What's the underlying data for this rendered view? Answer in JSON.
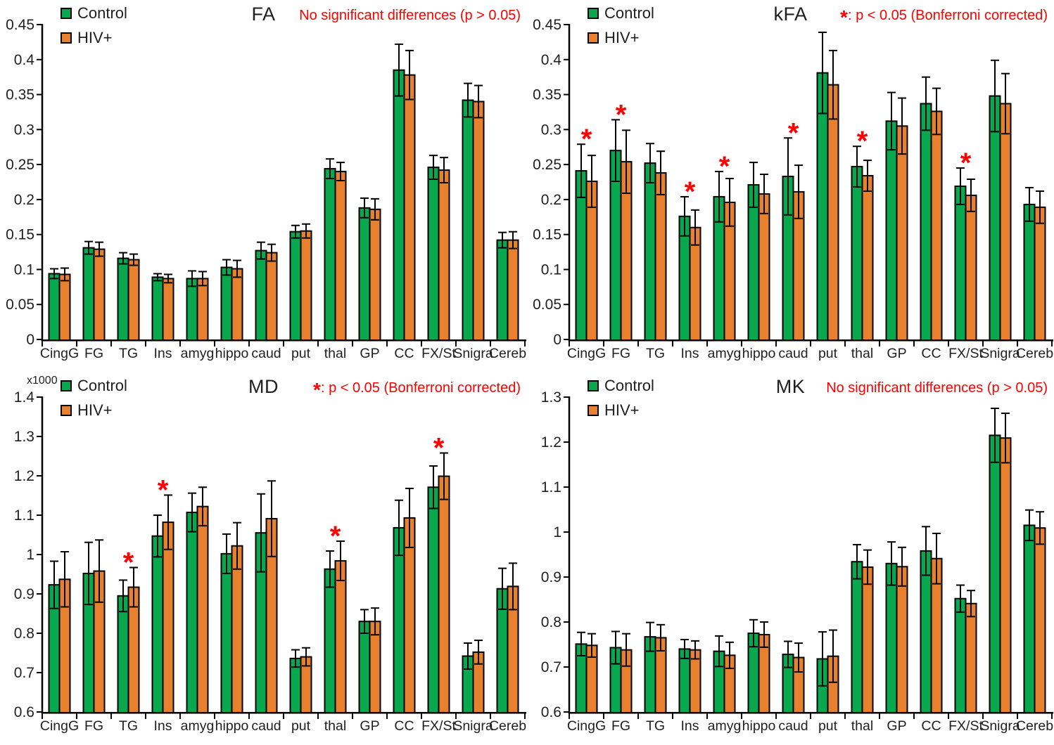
{
  "figure": {
    "background": "#ffffff",
    "bar_border_color": "#000000",
    "axis_color": "#000000",
    "text_color": "#1f1f1f",
    "significance_color": "#ff0000"
  },
  "chart_data": [
    {
      "key": "FA",
      "type": "bar",
      "title": "FA",
      "annotation": {
        "star": "",
        "text": "No significant differences (p > 0.05)",
        "color": "#ff0000"
      },
      "multiplier": "",
      "ylim": [
        0,
        0.45
      ],
      "ytick_values": [
        0,
        0.05,
        0.1,
        0.15,
        0.2,
        0.25,
        0.3,
        0.35,
        0.4,
        0.45
      ],
      "ytick_labels": [
        "0",
        "0.05",
        "0.1",
        "0.15",
        "0.2",
        "0.25",
        "0.3",
        "0.35",
        "0.4",
        "0.45"
      ],
      "grid": false,
      "legend_position": "top-left",
      "categories": [
        "CingG",
        "FG",
        "TG",
        "Ins",
        "amyg",
        "hippo",
        "caud",
        "put",
        "thal",
        "GP",
        "CC",
        "FX/St",
        "Snigra",
        "Cereb"
      ],
      "series": [
        {
          "name": "Control",
          "color": "#0aa84e",
          "values": [
            0.094,
            0.131,
            0.116,
            0.089,
            0.087,
            0.103,
            0.127,
            0.154,
            0.244,
            0.188,
            0.385,
            0.246,
            0.342,
            0.142
          ],
          "errors": [
            0.007,
            0.009,
            0.008,
            0.005,
            0.011,
            0.011,
            0.012,
            0.009,
            0.014,
            0.014,
            0.037,
            0.017,
            0.024,
            0.011
          ]
        },
        {
          "name": "HIV+",
          "color": "#e8812f",
          "values": [
            0.093,
            0.129,
            0.114,
            0.087,
            0.087,
            0.101,
            0.124,
            0.155,
            0.24,
            0.186,
            0.378,
            0.242,
            0.34,
            0.142
          ],
          "errors": [
            0.009,
            0.01,
            0.008,
            0.006,
            0.01,
            0.012,
            0.012,
            0.01,
            0.013,
            0.015,
            0.035,
            0.018,
            0.023,
            0.012
          ]
        }
      ],
      "significant_categories": []
    },
    {
      "key": "kFA",
      "type": "bar",
      "title": "kFA",
      "annotation": {
        "star": "*",
        "text": ": p < 0.05 (Bonferroni corrected)",
        "color": "#ff0000"
      },
      "multiplier": "",
      "ylim": [
        0,
        0.45
      ],
      "ytick_values": [
        0,
        0.05,
        0.1,
        0.15,
        0.2,
        0.25,
        0.3,
        0.35,
        0.4,
        0.45
      ],
      "ytick_labels": [
        "0",
        "0.05",
        "0.1",
        "0.15",
        "0.2",
        "0.25",
        "0.3",
        "0.35",
        "0.4",
        "0.45"
      ],
      "grid": false,
      "legend_position": "top-left",
      "categories": [
        "CingG",
        "FG",
        "TG",
        "Ins",
        "amyg",
        "hippo",
        "caud",
        "put",
        "thal",
        "GP",
        "CC",
        "FX/St",
        "Snigra",
        "Cereb"
      ],
      "series": [
        {
          "name": "Control",
          "color": "#0aa84e",
          "values": [
            0.241,
            0.27,
            0.252,
            0.176,
            0.204,
            0.221,
            0.233,
            0.381,
            0.247,
            0.312,
            0.337,
            0.219,
            0.348,
            0.193
          ],
          "errors": [
            0.038,
            0.044,
            0.028,
            0.028,
            0.036,
            0.032,
            0.055,
            0.058,
            0.029,
            0.041,
            0.038,
            0.026,
            0.051,
            0.024
          ]
        },
        {
          "name": "HIV+",
          "color": "#e8812f",
          "values": [
            0.226,
            0.254,
            0.238,
            0.16,
            0.196,
            0.208,
            0.211,
            0.364,
            0.234,
            0.305,
            0.326,
            0.206,
            0.337,
            0.189
          ],
          "errors": [
            0.037,
            0.045,
            0.031,
            0.025,
            0.034,
            0.028,
            0.038,
            0.049,
            0.022,
            0.04,
            0.033,
            0.023,
            0.043,
            0.023
          ]
        }
      ],
      "significant_categories": [
        "CingG",
        "FG",
        "Ins",
        "amyg",
        "caud",
        "thal",
        "FX/St"
      ]
    },
    {
      "key": "MD",
      "type": "bar",
      "title": "MD",
      "annotation": {
        "star": "*",
        "text": ": p < 0.05 (Bonferroni corrected)",
        "color": "#ff0000"
      },
      "multiplier": "x1000",
      "ylim": [
        0.6,
        1.4
      ],
      "ytick_values": [
        0.6,
        0.7,
        0.8,
        0.9,
        1.0,
        1.1,
        1.2,
        1.3,
        1.4
      ],
      "ytick_labels": [
        "0.6",
        "0.7",
        "0.8",
        "0.9",
        "1",
        "1.1",
        "1.2",
        "1.3",
        "1.4"
      ],
      "grid": false,
      "legend_position": "top-left",
      "categories": [
        "CingG",
        "FG",
        "TG",
        "Ins",
        "amyg",
        "hippo",
        "caud",
        "put",
        "thal",
        "GP",
        "CC",
        "FX/St",
        "Snigra",
        "Cereb"
      ],
      "series": [
        {
          "name": "Control",
          "color": "#0aa84e",
          "values": [
            0.923,
            0.952,
            0.895,
            1.047,
            1.107,
            1.002,
            1.055,
            0.736,
            0.963,
            0.83,
            1.068,
            1.171,
            0.742,
            0.913
          ],
          "errors": [
            0.06,
            0.079,
            0.04,
            0.053,
            0.049,
            0.05,
            0.099,
            0.022,
            0.046,
            0.03,
            0.07,
            0.054,
            0.033,
            0.052
          ]
        },
        {
          "name": "HIV+",
          "color": "#e8812f",
          "values": [
            0.937,
            0.958,
            0.917,
            1.082,
            1.122,
            1.022,
            1.091,
            0.74,
            0.984,
            0.83,
            1.093,
            1.199,
            0.752,
            0.919
          ],
          "errors": [
            0.07,
            0.079,
            0.05,
            0.069,
            0.049,
            0.059,
            0.096,
            0.023,
            0.05,
            0.034,
            0.075,
            0.059,
            0.03,
            0.059
          ]
        }
      ],
      "significant_categories": [
        "TG",
        "Ins",
        "thal",
        "FX/St"
      ]
    },
    {
      "key": "MK",
      "type": "bar",
      "title": "MK",
      "annotation": {
        "star": "",
        "text": "No significant differences (p > 0.05)",
        "color": "#ff0000"
      },
      "multiplier": "",
      "ylim": [
        0.6,
        1.3
      ],
      "ytick_values": [
        0.6,
        0.7,
        0.8,
        0.9,
        1.0,
        1.1,
        1.2,
        1.3
      ],
      "ytick_labels": [
        "0.6",
        "0.7",
        "0.8",
        "0.9",
        "1",
        "1.1",
        "1.2",
        "1.3"
      ],
      "grid": false,
      "legend_position": "top-left",
      "categories": [
        "CingG",
        "FG",
        "TG",
        "Ins",
        "amyg",
        "hippo",
        "caud",
        "put",
        "thal",
        "GP",
        "CC",
        "FX/St",
        "Snigra",
        "Cereb"
      ],
      "series": [
        {
          "name": "Control",
          "color": "#0aa84e",
          "values": [
            0.751,
            0.743,
            0.767,
            0.74,
            0.735,
            0.775,
            0.728,
            0.718,
            0.934,
            0.93,
            0.958,
            0.852,
            1.215,
            1.015
          ],
          "errors": [
            0.026,
            0.036,
            0.032,
            0.021,
            0.034,
            0.03,
            0.029,
            0.06,
            0.038,
            0.048,
            0.054,
            0.03,
            0.06,
            0.034
          ]
        },
        {
          "name": "HIV+",
          "color": "#e8812f",
          "values": [
            0.748,
            0.738,
            0.765,
            0.738,
            0.726,
            0.772,
            0.721,
            0.724,
            0.922,
            0.923,
            0.941,
            0.841,
            1.209,
            1.009
          ],
          "errors": [
            0.026,
            0.036,
            0.029,
            0.02,
            0.029,
            0.028,
            0.032,
            0.058,
            0.038,
            0.043,
            0.056,
            0.029,
            0.055,
            0.036
          ]
        }
      ],
      "significant_categories": []
    }
  ]
}
